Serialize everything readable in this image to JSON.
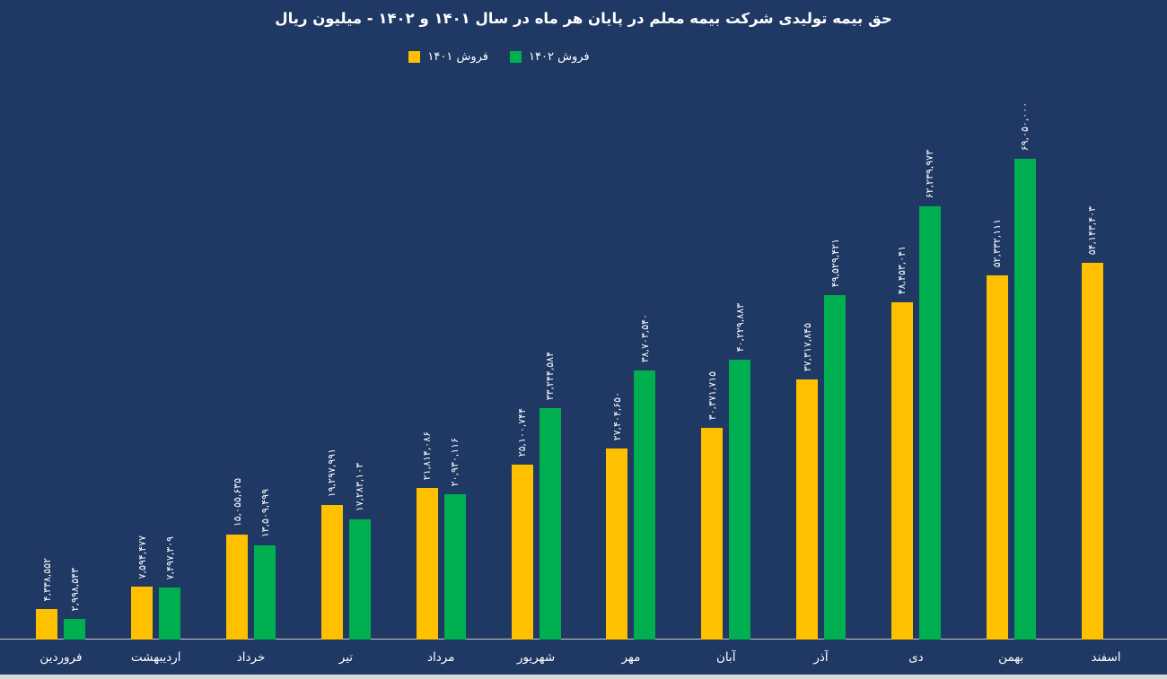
{
  "title": "حق بیمه تولیدی شرکت بیمه معلم در پایان هر ماه در سال ۱۴۰۱ و ۱۴۰۲ - میلیون ریال",
  "legend": [
    {
      "label": "فروش ۱۴۰۱",
      "color": "#FFC000"
    },
    {
      "label": "فروش ۱۴۰۲",
      "color": "#00B050"
    }
  ],
  "colors": {
    "background": "#1F3864",
    "bar_1401": "#FFC000",
    "bar_1402": "#00B050",
    "axis_line": "#C9C9C9",
    "text": "#FFFFFF"
  },
  "chart_data": {
    "type": "bar",
    "title": "حق بیمه تولیدی شرکت بیمه معلم در پایان هر ماه در سال ۱۴۰۱ و ۱۴۰۲ - میلیون ریال",
    "xlabel": "",
    "ylabel": "",
    "ylim": [
      0,
      69050000
    ],
    "grid": false,
    "legend_position": "top",
    "categories": [
      "فروردین",
      "اردیبهشت",
      "خرداد",
      "تیر",
      "مرداد",
      "شهریور",
      "مهر",
      "آبان",
      "آذر",
      "دی",
      "بهمن",
      "اسفند"
    ],
    "series": [
      {
        "key": "sales-1401",
        "name": "فروش ۱۴۰۱",
        "color": "#FFC000",
        "values": [
          4338552,
          7594477,
          15055635,
          19297991,
          21814086,
          25100744,
          27404650,
          30371715,
          37317845,
          48453041,
          52332111,
          54143403
        ],
        "labels": [
          "۴,۳۳۸,۵۵۲",
          "۷,۵۹۴,۴۷۷",
          "۱۵,۰۵۵,۶۳۵",
          "۱۹,۲۹۷,۹۹۱",
          "۲۱,۸۱۴,۰۸۶",
          "۲۵,۱۰۰,۷۴۴",
          "۲۷,۴۰۴,۶۵۰",
          "۳۰,۳۷۱,۷۱۵",
          "۳۷,۳۱۷,۸۴۵",
          "۴۸,۴۵۳,۰۴۱",
          "۵۲,۳۳۲,۱۱۱",
          "۵۴,۱۴۳,۴۰۳"
        ]
      },
      {
        "key": "sales-1402",
        "name": "فروش ۱۴۰۲",
        "color": "#00B050",
        "values": [
          2998543,
          7497309,
          13509499,
          17283103,
          20930116,
          33244584,
          38703540,
          40229883,
          49529421,
          62239973,
          69050000,
          null
        ],
        "labels": [
          "۲,۹۹۸,۵۴۳",
          "۷,۴۹۷,۳۰۹",
          "۱۳,۵۰۹,۴۹۹",
          "۱۷,۲۸۳,۱۰۳",
          "۲۰,۹۳۰,۱۱۶",
          "۳۳,۲۴۴,۵۸۴",
          "۳۸,۷۰۳,۵۴۰",
          "۴۰,۲۲۹,۸۸۳",
          "۴۹,۵۲۹,۴۲۱",
          "۶۲,۲۳۹,۹۷۳",
          "۶۹,۰۵۰,۰۰۰",
          null
        ]
      }
    ]
  }
}
